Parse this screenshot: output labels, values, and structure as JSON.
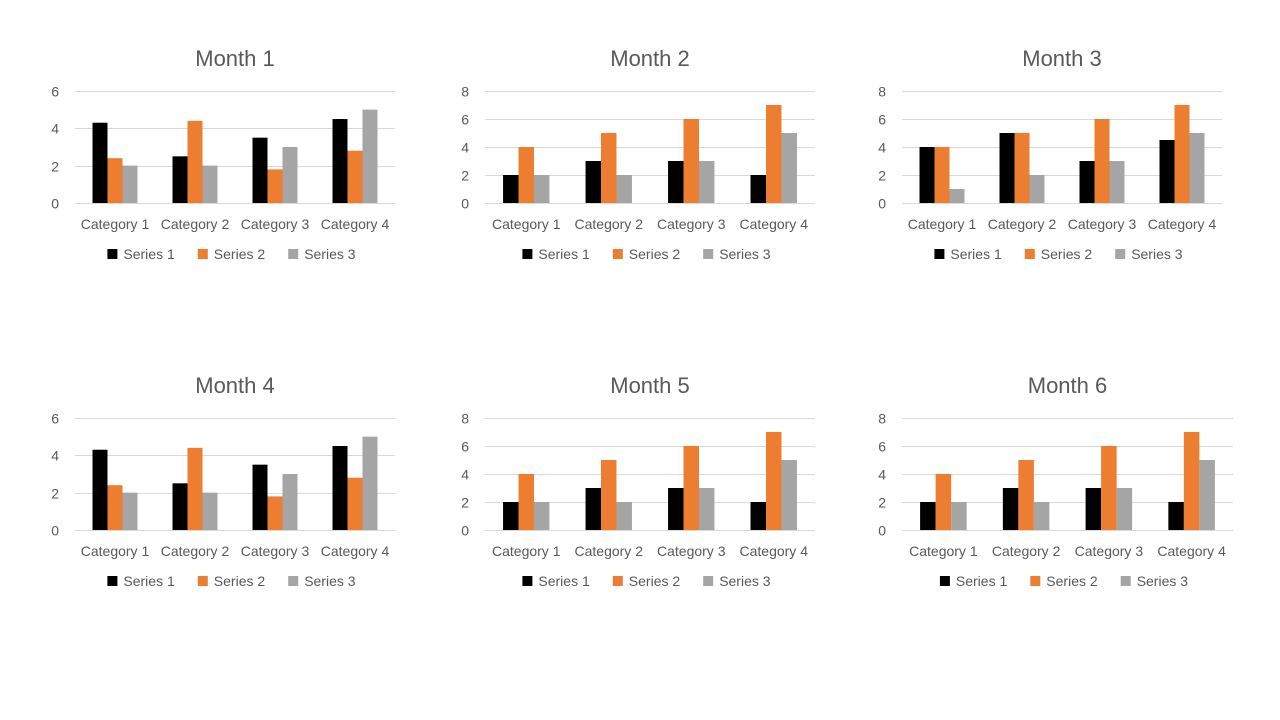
{
  "colors": {
    "series_1": "#000000",
    "series_2": "#ed7d31",
    "series_3": "#a5a5a5",
    "text": "#595959",
    "grid": "#d9d9d9"
  },
  "chart_data": [
    {
      "type": "bar",
      "title": "Month 1",
      "categories": [
        "Category 1",
        "Category 2",
        "Category 3",
        "Category 4"
      ],
      "series": [
        {
          "name": "Series 1",
          "values": [
            4.3,
            2.5,
            3.5,
            4.5
          ]
        },
        {
          "name": "Series 2",
          "values": [
            2.4,
            4.4,
            1.8,
            2.8
          ]
        },
        {
          "name": "Series 3",
          "values": [
            2,
            2,
            3,
            5
          ]
        }
      ],
      "ylim": [
        0,
        6
      ],
      "yticks": [
        0,
        2,
        4,
        6
      ],
      "grid": true,
      "legend": "bottom"
    },
    {
      "type": "bar",
      "title": "Month 2",
      "categories": [
        "Category 1",
        "Category 2",
        "Category 3",
        "Category 4"
      ],
      "series": [
        {
          "name": "Series 1",
          "values": [
            2,
            3,
            3,
            2
          ]
        },
        {
          "name": "Series 2",
          "values": [
            4,
            5,
            6,
            7
          ]
        },
        {
          "name": "Series 3",
          "values": [
            2,
            2,
            3,
            5
          ]
        }
      ],
      "ylim": [
        0,
        8
      ],
      "yticks": [
        0,
        2,
        4,
        6,
        8
      ],
      "grid": true,
      "legend": "bottom"
    },
    {
      "type": "bar",
      "title": "Month 3",
      "categories": [
        "Category 1",
        "Category 2",
        "Category 3",
        "Category 4"
      ],
      "series": [
        {
          "name": "Series 1",
          "values": [
            4,
            5,
            3,
            4.5
          ]
        },
        {
          "name": "Series 2",
          "values": [
            4,
            5,
            6,
            7
          ]
        },
        {
          "name": "Series 3",
          "values": [
            1,
            2,
            3,
            5
          ]
        }
      ],
      "ylim": [
        0,
        8
      ],
      "yticks": [
        0,
        2,
        4,
        6,
        8
      ],
      "grid": true,
      "legend": "bottom"
    },
    {
      "type": "bar",
      "title": "Month 4",
      "categories": [
        "Category 1",
        "Category 2",
        "Category 3",
        "Category 4"
      ],
      "series": [
        {
          "name": "Series 1",
          "values": [
            4.3,
            2.5,
            3.5,
            4.5
          ]
        },
        {
          "name": "Series 2",
          "values": [
            2.4,
            4.4,
            1.8,
            2.8
          ]
        },
        {
          "name": "Series 3",
          "values": [
            2,
            2,
            3,
            5
          ]
        }
      ],
      "ylim": [
        0,
        6
      ],
      "yticks": [
        0,
        2,
        4,
        6
      ],
      "grid": true,
      "legend": "bottom"
    },
    {
      "type": "bar",
      "title": "Month 5",
      "categories": [
        "Category 1",
        "Category 2",
        "Category 3",
        "Category 4"
      ],
      "series": [
        {
          "name": "Series 1",
          "values": [
            2,
            3,
            3,
            2
          ]
        },
        {
          "name": "Series 2",
          "values": [
            4,
            5,
            6,
            7
          ]
        },
        {
          "name": "Series 3",
          "values": [
            2,
            2,
            3,
            5
          ]
        }
      ],
      "ylim": [
        0,
        8
      ],
      "yticks": [
        0,
        2,
        4,
        6,
        8
      ],
      "grid": true,
      "legend": "bottom"
    },
    {
      "type": "bar",
      "title": "Month 6",
      "categories": [
        "Category 1",
        "Category 2",
        "Category 3",
        "Category 4"
      ],
      "series": [
        {
          "name": "Series 1",
          "values": [
            2,
            3,
            3,
            2
          ]
        },
        {
          "name": "Series 2",
          "values": [
            4,
            5,
            6,
            7
          ]
        },
        {
          "name": "Series 3",
          "values": [
            2,
            2,
            3,
            5
          ]
        }
      ],
      "ylim": [
        0,
        8
      ],
      "yticks": [
        0,
        2,
        4,
        6,
        8
      ],
      "grid": true,
      "legend": "bottom"
    }
  ]
}
